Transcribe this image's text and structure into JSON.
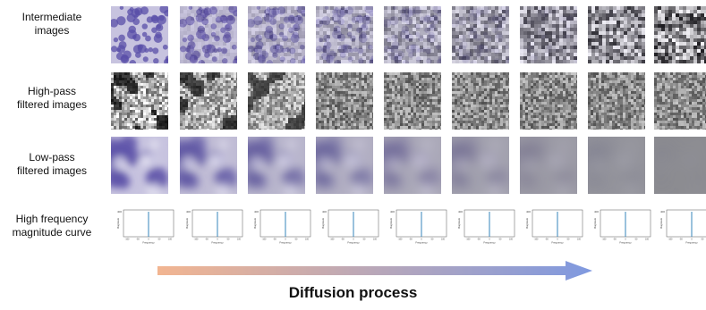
{
  "rows": [
    {
      "label_lines": [
        "Intermediate",
        "images"
      ]
    },
    {
      "label_lines": [
        "High-pass",
        "filtered images"
      ]
    },
    {
      "label_lines": [
        "Low-pass",
        "filtered images"
      ]
    },
    {
      "label_lines": [
        "High frequency",
        "magnitude curve"
      ]
    }
  ],
  "steps": 9,
  "plot_text": {
    "y_axis": "Magnitude",
    "x_axis": "Frequency",
    "y_tick": "400",
    "x_ticks": [
      "-100",
      "-50",
      "0",
      "50",
      "100"
    ]
  },
  "caption": "Diffusion process",
  "colors": {
    "cell_purple": "#5a4fa8",
    "background_lavender": "#c7c3df",
    "noise_gray": "#8a8a8a",
    "spike_blue": "#1f77b4",
    "arrow_start": "#f2b591",
    "arrow_end": "#7f99e0"
  }
}
